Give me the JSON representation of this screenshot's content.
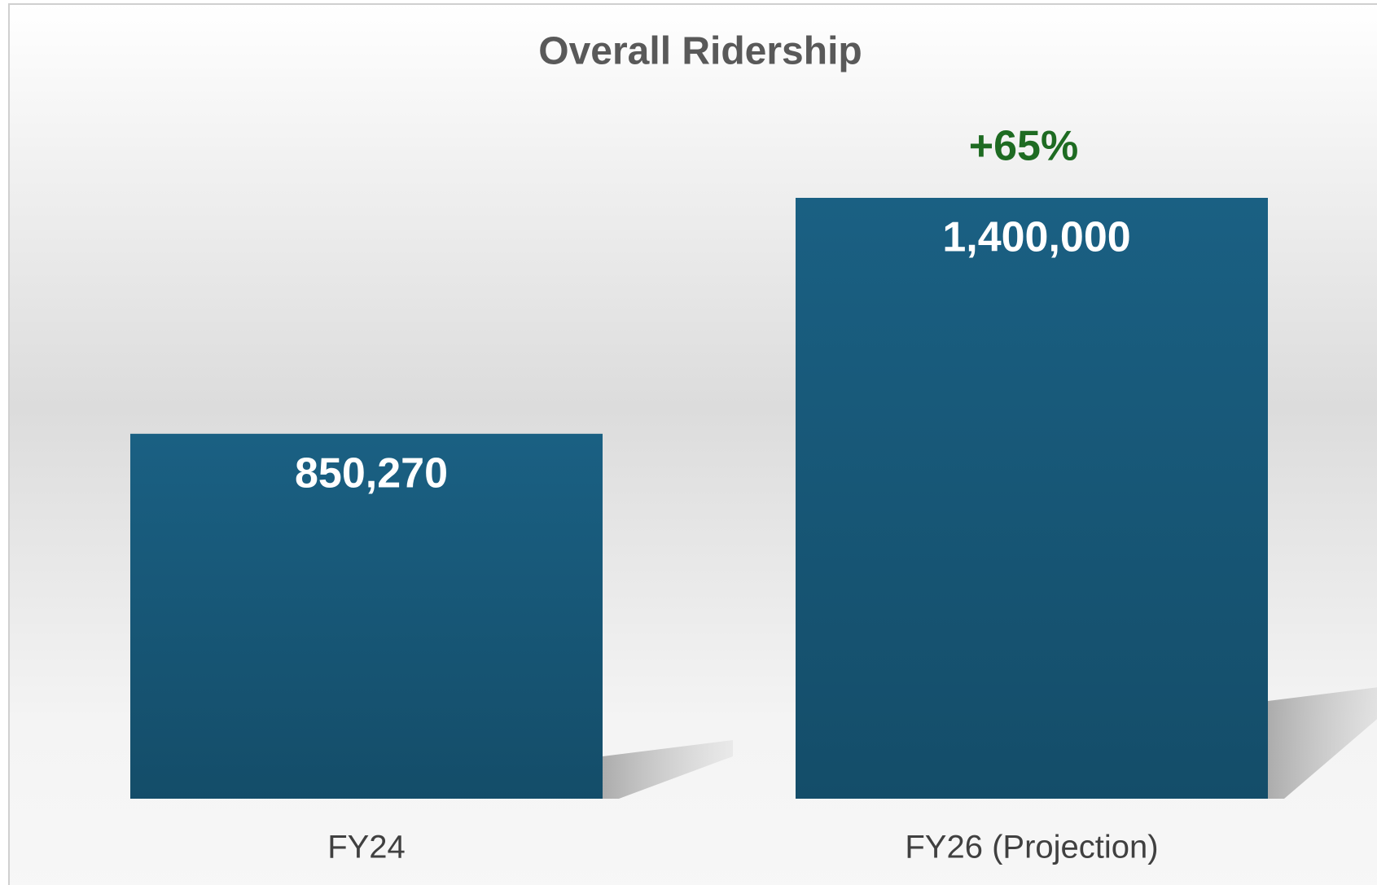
{
  "chart_data": {
    "type": "bar",
    "title": "Overall Ridership",
    "categories": [
      "FY24",
      "FY26 (Projection)"
    ],
    "values": [
      850270,
      1400000
    ],
    "value_labels": [
      "850,270",
      "1,400,000"
    ],
    "color": "#175b7c",
    "annotation": "+65%"
  }
}
